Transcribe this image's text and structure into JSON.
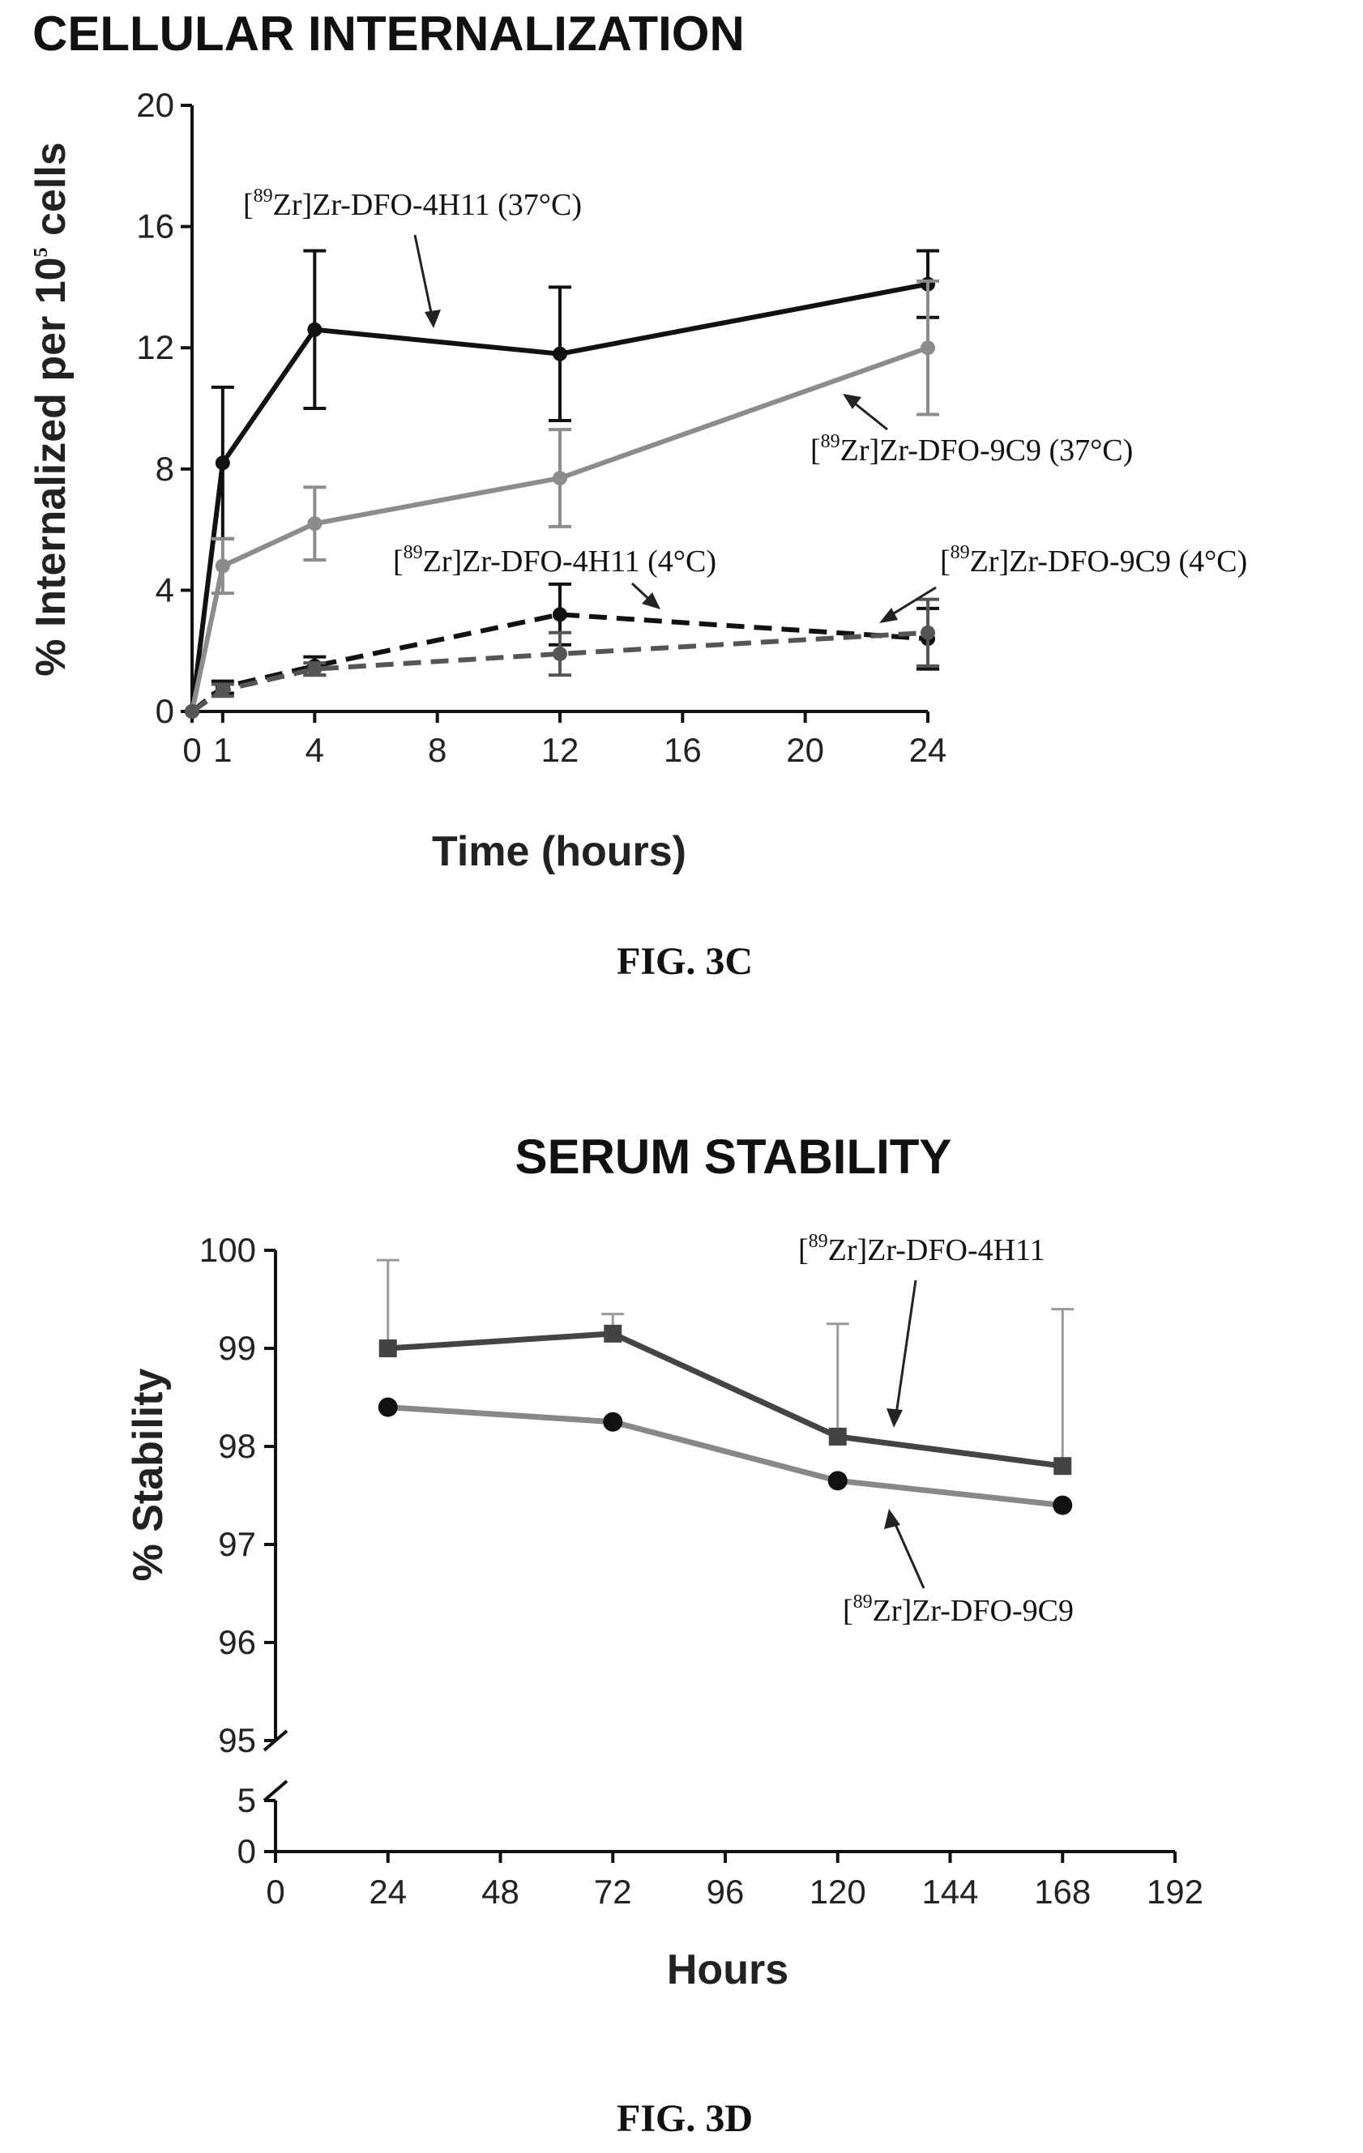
{
  "chart_data": [
    {
      "type": "line",
      "title": "CELLULAR INTERNALIZATION",
      "xlabel": "Time (hours)",
      "ylabel": "% Internalized per 10^5 cells",
      "ylabel_main": "% Internalized per 10",
      "ylabel_sup": "5",
      "ylabel_tail": " cells",
      "xlim": [
        0,
        24
      ],
      "ylim": [
        0,
        20
      ],
      "xticks": [
        0,
        1,
        4,
        8,
        12,
        16,
        20,
        24
      ],
      "xtick_labels": [
        "0",
        "1",
        "4",
        "8",
        "12",
        "16",
        "20",
        "24"
      ],
      "yticks": [
        0,
        4,
        8,
        12,
        16,
        20
      ],
      "ytick_labels": [
        "0",
        "4",
        "8",
        "12",
        "16",
        "20"
      ],
      "caption": "FIG. 3C",
      "series": [
        {
          "name": "[89Zr]Zr-DFO-4H11 (37°C)",
          "color": "#111111",
          "dashed": false,
          "marker": "circle",
          "x": [
            0,
            1,
            4,
            12,
            24
          ],
          "y": [
            0,
            8.2,
            12.6,
            11.8,
            14.1
          ],
          "err": [
            0,
            2.5,
            2.6,
            2.2,
            1.1
          ]
        },
        {
          "name": "[89Zr]Zr-DFO-9C9 (37°C)",
          "color": "#8c8c8c",
          "dashed": false,
          "marker": "circle",
          "x": [
            0,
            1,
            4,
            12,
            24
          ],
          "y": [
            0,
            4.8,
            6.2,
            7.7,
            12.0
          ],
          "err": [
            0,
            0.9,
            1.2,
            1.6,
            2.2
          ]
        },
        {
          "name": "[89Zr]Zr-DFO-4H11 (4°C)",
          "color": "#111111",
          "dashed": true,
          "marker": "circle",
          "x": [
            0,
            1,
            4,
            12,
            24
          ],
          "y": [
            0,
            0.8,
            1.5,
            3.2,
            2.4
          ],
          "err": [
            0,
            0.2,
            0.3,
            1.0,
            1.0
          ]
        },
        {
          "name": "[89Zr]Zr-DFO-9C9 (4°C)",
          "color": "#555555",
          "dashed": true,
          "marker": "circle",
          "x": [
            0,
            1,
            4,
            12,
            24
          ],
          "y": [
            0,
            0.7,
            1.4,
            1.9,
            2.6
          ],
          "err": [
            0,
            0.2,
            0.2,
            0.7,
            1.1
          ]
        }
      ],
      "annotations": [
        {
          "pre": "[",
          "sup": "89",
          "post": "Zr]Zr-DFO-4H11 (37°C)"
        },
        {
          "pre": "[",
          "sup": "89",
          "post": "Zr]Zr-DFO-9C9 (37°C)"
        },
        {
          "pre": "[",
          "sup": "89",
          "post": "Zr]Zr-DFO-4H11 (4°C)"
        },
        {
          "pre": "[",
          "sup": "89",
          "post": "Zr]Zr-DFO-9C9 (4°C)"
        }
      ]
    },
    {
      "type": "line",
      "title": "SERUM STABILITY",
      "xlabel": "Hours",
      "ylabel": "% Stability",
      "xlim": [
        0,
        192
      ],
      "ylim_upper": [
        95,
        100
      ],
      "ylim_lower": [
        0,
        5
      ],
      "broken_y_axis": true,
      "xticks": [
        0,
        24,
        48,
        72,
        96,
        120,
        144,
        168,
        192
      ],
      "xtick_labels": [
        "0",
        "24",
        "48",
        "72",
        "96",
        "120",
        "144",
        "168",
        "192"
      ],
      "ytick_labels_upper": [
        "95",
        "96",
        "97",
        "98",
        "99",
        "100"
      ],
      "ytick_labels_lower": [
        "0",
        "5"
      ],
      "caption": "FIG. 3D",
      "series": [
        {
          "name": "[89Zr]Zr-DFO-4H11",
          "color": "#444444",
          "marker": "square",
          "x": [
            24,
            72,
            120,
            168
          ],
          "y": [
            99.0,
            99.15,
            98.1,
            97.8
          ],
          "err": [
            0.9,
            0.2,
            1.15,
            1.6
          ]
        },
        {
          "name": "[89Zr]Zr-DFO-9C9",
          "color": "#888888",
          "marker": "circle",
          "x": [
            24,
            72,
            120,
            168
          ],
          "y": [
            98.4,
            98.25,
            97.65,
            97.4
          ],
          "err": [
            0.0,
            0.0,
            0.0,
            0.0
          ]
        }
      ],
      "annotations": [
        {
          "pre": "[",
          "sup": "89",
          "post": "Zr]Zr-DFO-4H11"
        },
        {
          "pre": "[",
          "sup": "89",
          "post": "Zr]Zr-DFO-9C9"
        }
      ]
    }
  ]
}
